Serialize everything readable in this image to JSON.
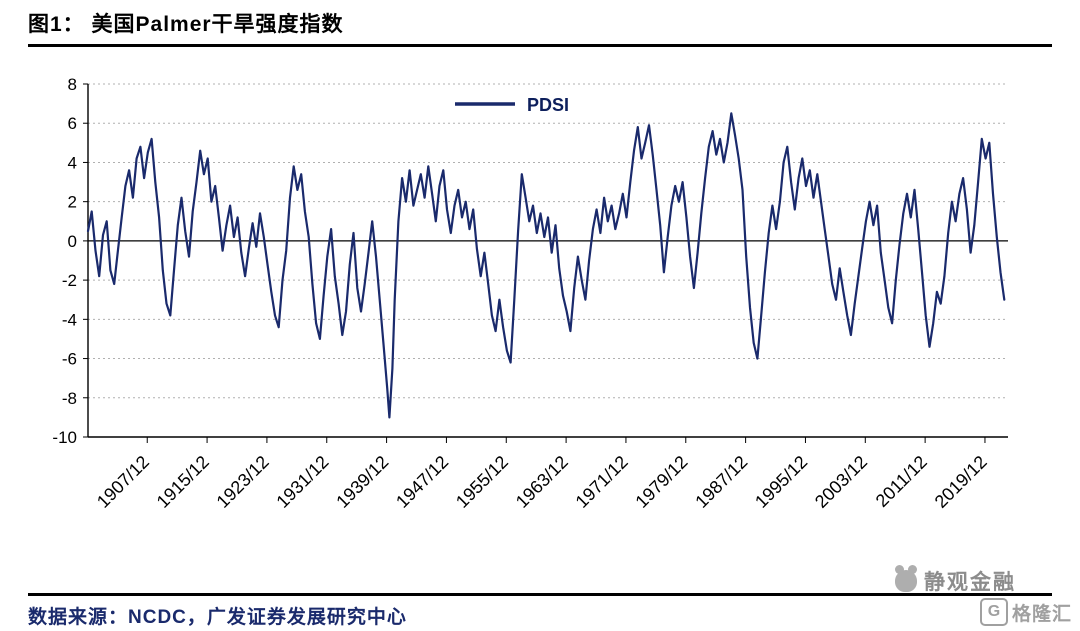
{
  "title": "图1：  美国Palmer干旱强度指数",
  "source": "数据来源：NCDC，广发证券发展研究中心",
  "watermark": {
    "brand": "静观金融",
    "logo_letter": "G",
    "logo_name": "格隆汇"
  },
  "colors": {
    "line": "#1A2A6C",
    "axis": "#000000",
    "grid": "#b0b0b0",
    "source_text": "#1A2A6C",
    "watermark_gray": "#8c8c8c"
  },
  "chart_data": {
    "type": "line",
    "title": "图1：美国Palmer干旱强度指数",
    "legend": "PDSI",
    "legend_position": "top-center-inside",
    "grid": "dotted-horizontal",
    "xlabel": "",
    "ylabel": "",
    "ylim": [
      -10,
      8
    ],
    "x_domain": [
      1900,
      2023
    ],
    "y_ticks": [
      8,
      6,
      4,
      2,
      0,
      -2,
      -4,
      -6,
      -8,
      -10
    ],
    "x_ticks": [
      {
        "pos": 1907.92,
        "label": "1907/12"
      },
      {
        "pos": 1915.92,
        "label": "1915/12"
      },
      {
        "pos": 1923.92,
        "label": "1923/12"
      },
      {
        "pos": 1931.92,
        "label": "1931/12"
      },
      {
        "pos": 1939.92,
        "label": "1939/12"
      },
      {
        "pos": 1947.92,
        "label": "1947/12"
      },
      {
        "pos": 1955.92,
        "label": "1955/12"
      },
      {
        "pos": 1963.92,
        "label": "1963/12"
      },
      {
        "pos": 1971.92,
        "label": "1971/12"
      },
      {
        "pos": 1979.92,
        "label": "1979/12"
      },
      {
        "pos": 1987.92,
        "label": "1987/12"
      },
      {
        "pos": 1995.92,
        "label": "1995/12"
      },
      {
        "pos": 2003.92,
        "label": "2003/12"
      },
      {
        "pos": 2011.92,
        "label": "2011/12"
      },
      {
        "pos": 2019.92,
        "label": "2019/12"
      }
    ],
    "series": [
      {
        "name": "PDSI",
        "color": "#1A2A6C",
        "points": [
          [
            1900,
            0.5
          ],
          [
            1900.5,
            1.5
          ],
          [
            1901,
            -0.5
          ],
          [
            1901.5,
            -1.8
          ],
          [
            1902,
            0.3
          ],
          [
            1902.5,
            1.0
          ],
          [
            1903,
            -1.5
          ],
          [
            1903.5,
            -2.2
          ],
          [
            1904,
            -0.5
          ],
          [
            1904.5,
            1.2
          ],
          [
            1905,
            2.8
          ],
          [
            1905.5,
            3.6
          ],
          [
            1906,
            2.2
          ],
          [
            1906.5,
            4.2
          ],
          [
            1907,
            4.8
          ],
          [
            1907.5,
            3.2
          ],
          [
            1908,
            4.5
          ],
          [
            1908.5,
            5.2
          ],
          [
            1909,
            3.0
          ],
          [
            1909.5,
            1.2
          ],
          [
            1910,
            -1.5
          ],
          [
            1910.5,
            -3.2
          ],
          [
            1911,
            -3.8
          ],
          [
            1911.5,
            -1.5
          ],
          [
            1912,
            0.8
          ],
          [
            1912.5,
            2.2
          ],
          [
            1913,
            0.5
          ],
          [
            1913.5,
            -0.8
          ],
          [
            1914,
            1.5
          ],
          [
            1914.5,
            3.0
          ],
          [
            1915,
            4.6
          ],
          [
            1915.5,
            3.4
          ],
          [
            1916,
            4.2
          ],
          [
            1916.5,
            2.0
          ],
          [
            1917,
            2.8
          ],
          [
            1917.5,
            1.2
          ],
          [
            1918,
            -0.5
          ],
          [
            1918.5,
            0.8
          ],
          [
            1919,
            1.8
          ],
          [
            1919.5,
            0.2
          ],
          [
            1920,
            1.2
          ],
          [
            1920.5,
            -0.6
          ],
          [
            1921,
            -1.8
          ],
          [
            1921.5,
            -0.4
          ],
          [
            1922,
            0.9
          ],
          [
            1922.5,
            -0.3
          ],
          [
            1923,
            1.4
          ],
          [
            1923.5,
            0.2
          ],
          [
            1924,
            -1.2
          ],
          [
            1924.5,
            -2.6
          ],
          [
            1925,
            -3.8
          ],
          [
            1925.5,
            -4.4
          ],
          [
            1926,
            -2.0
          ],
          [
            1926.5,
            -0.5
          ],
          [
            1927,
            2.2
          ],
          [
            1927.5,
            3.8
          ],
          [
            1928,
            2.6
          ],
          [
            1928.5,
            3.4
          ],
          [
            1929,
            1.5
          ],
          [
            1929.5,
            0.2
          ],
          [
            1930,
            -2.2
          ],
          [
            1930.5,
            -4.2
          ],
          [
            1931,
            -5.0
          ],
          [
            1931.5,
            -2.8
          ],
          [
            1932,
            -0.8
          ],
          [
            1932.5,
            0.6
          ],
          [
            1933,
            -1.8
          ],
          [
            1933.5,
            -3.2
          ],
          [
            1934,
            -4.8
          ],
          [
            1934.5,
            -3.6
          ],
          [
            1935,
            -1.2
          ],
          [
            1935.5,
            0.4
          ],
          [
            1936,
            -2.4
          ],
          [
            1936.5,
            -3.6
          ],
          [
            1937,
            -2.2
          ],
          [
            1937.5,
            -0.6
          ],
          [
            1938,
            1.0
          ],
          [
            1938.5,
            -0.8
          ],
          [
            1939,
            -3.0
          ],
          [
            1939.5,
            -5.2
          ],
          [
            1940,
            -7.5
          ],
          [
            1940.3,
            -9.0
          ],
          [
            1940.7,
            -6.5
          ],
          [
            1941,
            -3.0
          ],
          [
            1941.5,
            1.0
          ],
          [
            1942,
            3.2
          ],
          [
            1942.5,
            2.0
          ],
          [
            1943,
            3.6
          ],
          [
            1943.5,
            1.8
          ],
          [
            1944,
            2.6
          ],
          [
            1944.5,
            3.4
          ],
          [
            1945,
            2.2
          ],
          [
            1945.5,
            3.8
          ],
          [
            1946,
            2.4
          ],
          [
            1946.5,
            1.0
          ],
          [
            1947,
            2.8
          ],
          [
            1947.5,
            3.6
          ],
          [
            1948,
            1.6
          ],
          [
            1948.5,
            0.4
          ],
          [
            1949,
            1.8
          ],
          [
            1949.5,
            2.6
          ],
          [
            1950,
            1.2
          ],
          [
            1950.5,
            2.0
          ],
          [
            1951,
            0.6
          ],
          [
            1951.5,
            1.6
          ],
          [
            1952,
            -0.4
          ],
          [
            1952.5,
            -1.8
          ],
          [
            1953,
            -0.6
          ],
          [
            1953.5,
            -2.2
          ],
          [
            1954,
            -3.8
          ],
          [
            1954.5,
            -4.6
          ],
          [
            1955,
            -3.0
          ],
          [
            1955.5,
            -4.4
          ],
          [
            1956,
            -5.6
          ],
          [
            1956.5,
            -6.2
          ],
          [
            1957,
            -3.0
          ],
          [
            1957.5,
            0.5
          ],
          [
            1958,
            3.4
          ],
          [
            1958.5,
            2.2
          ],
          [
            1959,
            1.0
          ],
          [
            1959.5,
            1.8
          ],
          [
            1960,
            0.4
          ],
          [
            1960.5,
            1.4
          ],
          [
            1961,
            0.2
          ],
          [
            1961.5,
            1.2
          ],
          [
            1962,
            -0.6
          ],
          [
            1962.5,
            0.8
          ],
          [
            1963,
            -1.4
          ],
          [
            1963.5,
            -2.8
          ],
          [
            1964,
            -3.6
          ],
          [
            1964.5,
            -4.6
          ],
          [
            1965,
            -2.4
          ],
          [
            1965.5,
            -0.8
          ],
          [
            1966,
            -2.0
          ],
          [
            1966.5,
            -3.0
          ],
          [
            1967,
            -1.0
          ],
          [
            1967.5,
            0.6
          ],
          [
            1968,
            1.6
          ],
          [
            1968.5,
            0.4
          ],
          [
            1969,
            2.2
          ],
          [
            1969.5,
            1.0
          ],
          [
            1970,
            1.8
          ],
          [
            1970.5,
            0.6
          ],
          [
            1971,
            1.4
          ],
          [
            1971.5,
            2.4
          ],
          [
            1972,
            1.2
          ],
          [
            1972.5,
            3.0
          ],
          [
            1973,
            4.6
          ],
          [
            1973.5,
            5.8
          ],
          [
            1974,
            4.2
          ],
          [
            1974.5,
            5.0
          ],
          [
            1975,
            5.9
          ],
          [
            1975.5,
            4.4
          ],
          [
            1976,
            2.6
          ],
          [
            1976.5,
            0.8
          ],
          [
            1977,
            -1.6
          ],
          [
            1977.5,
            0.2
          ],
          [
            1978,
            1.8
          ],
          [
            1978.5,
            2.8
          ],
          [
            1979,
            2.0
          ],
          [
            1979.5,
            3.0
          ],
          [
            1980,
            1.2
          ],
          [
            1980.5,
            -0.8
          ],
          [
            1981,
            -2.4
          ],
          [
            1981.5,
            -0.6
          ],
          [
            1982,
            1.4
          ],
          [
            1982.5,
            3.2
          ],
          [
            1983,
            4.8
          ],
          [
            1983.5,
            5.6
          ],
          [
            1984,
            4.4
          ],
          [
            1984.5,
            5.2
          ],
          [
            1985,
            4.0
          ],
          [
            1985.5,
            5.0
          ],
          [
            1986,
            6.5
          ],
          [
            1986.5,
            5.4
          ],
          [
            1987,
            4.2
          ],
          [
            1987.5,
            2.6
          ],
          [
            1988,
            -0.8
          ],
          [
            1988.5,
            -3.4
          ],
          [
            1989,
            -5.2
          ],
          [
            1989.5,
            -6.0
          ],
          [
            1990,
            -3.8
          ],
          [
            1990.5,
            -1.6
          ],
          [
            1991,
            0.4
          ],
          [
            1991.5,
            1.8
          ],
          [
            1992,
            0.6
          ],
          [
            1992.5,
            2.0
          ],
          [
            1993,
            4.0
          ],
          [
            1993.5,
            4.8
          ],
          [
            1994,
            3.0
          ],
          [
            1994.5,
            1.6
          ],
          [
            1995,
            3.2
          ],
          [
            1995.5,
            4.2
          ],
          [
            1996,
            2.8
          ],
          [
            1996.5,
            3.6
          ],
          [
            1997,
            2.2
          ],
          [
            1997.5,
            3.4
          ],
          [
            1998,
            2.0
          ],
          [
            1998.5,
            0.6
          ],
          [
            1999,
            -0.8
          ],
          [
            1999.5,
            -2.2
          ],
          [
            2000,
            -3.0
          ],
          [
            2000.5,
            -1.4
          ],
          [
            2001,
            -2.6
          ],
          [
            2001.5,
            -3.8
          ],
          [
            2002,
            -4.8
          ],
          [
            2002.5,
            -3.2
          ],
          [
            2003,
            -1.8
          ],
          [
            2003.5,
            -0.4
          ],
          [
            2004,
            1.0
          ],
          [
            2004.5,
            2.0
          ],
          [
            2005,
            0.8
          ],
          [
            2005.5,
            1.8
          ],
          [
            2006,
            -0.6
          ],
          [
            2006.5,
            -2.0
          ],
          [
            2007,
            -3.4
          ],
          [
            2007.5,
            -4.2
          ],
          [
            2008,
            -2.0
          ],
          [
            2008.5,
            -0.2
          ],
          [
            2009,
            1.4
          ],
          [
            2009.5,
            2.4
          ],
          [
            2010,
            1.2
          ],
          [
            2010.5,
            2.6
          ],
          [
            2011,
            0.6
          ],
          [
            2011.5,
            -1.6
          ],
          [
            2012,
            -3.8
          ],
          [
            2012.5,
            -5.4
          ],
          [
            2013,
            -4.2
          ],
          [
            2013.5,
            -2.6
          ],
          [
            2014,
            -3.2
          ],
          [
            2014.5,
            -1.8
          ],
          [
            2015,
            0.4
          ],
          [
            2015.5,
            2.0
          ],
          [
            2016,
            1.0
          ],
          [
            2016.5,
            2.4
          ],
          [
            2017,
            3.2
          ],
          [
            2017.5,
            1.6
          ],
          [
            2018,
            -0.6
          ],
          [
            2018.5,
            0.8
          ],
          [
            2019,
            3.0
          ],
          [
            2019.5,
            5.2
          ],
          [
            2020,
            4.2
          ],
          [
            2020.5,
            5.0
          ],
          [
            2021,
            2.4
          ],
          [
            2021.5,
            0.2
          ],
          [
            2022,
            -1.6
          ],
          [
            2022.5,
            -3.0
          ]
        ]
      }
    ]
  }
}
